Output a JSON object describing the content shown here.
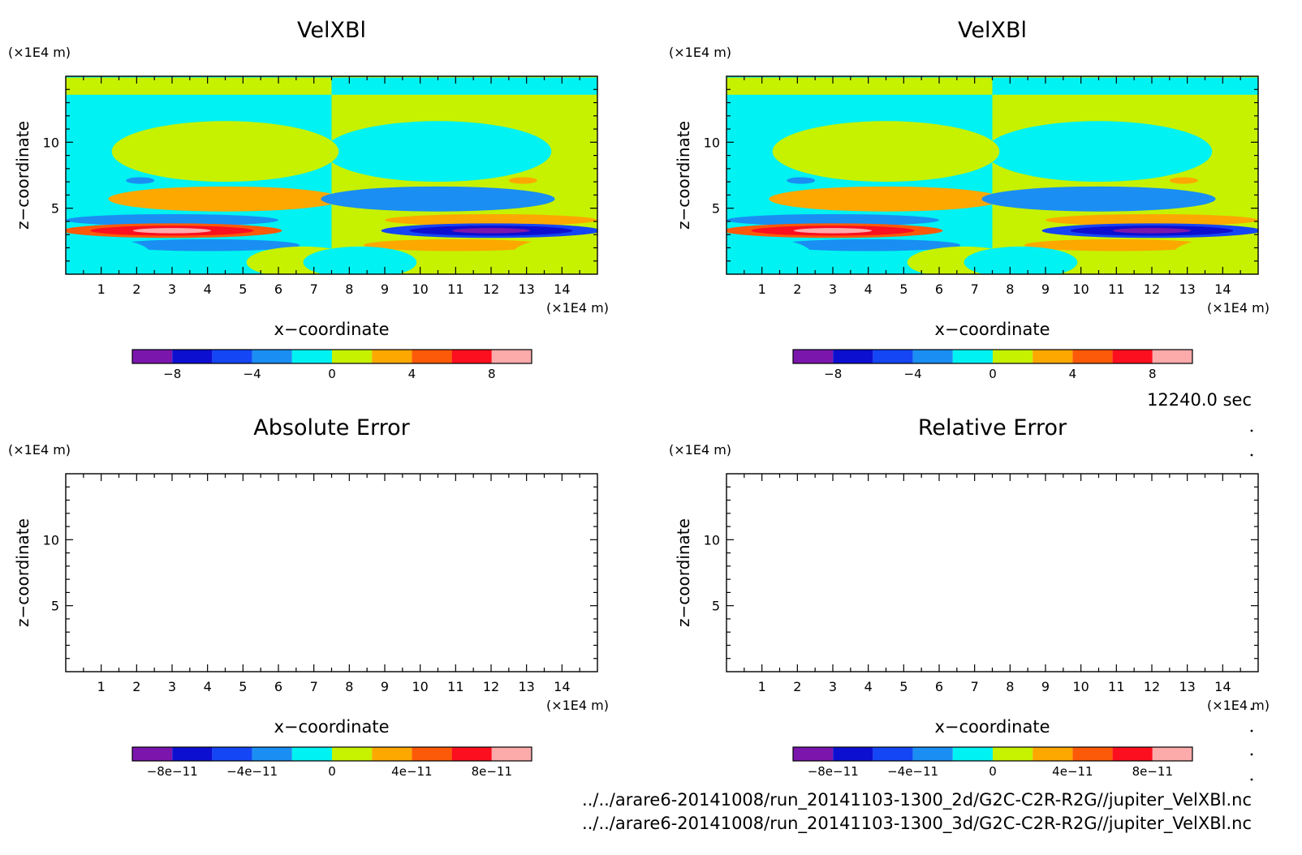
{
  "time_label": "12240.0 sec",
  "files": [
    "../../arare6-20141008/run_20141103-1300_2d/G2C-C2R-R2G//jupiter_VelXBl.nc",
    "../../arare6-20141008/run_20141103-1300_3d/G2C-C2R-R2G//jupiter_VelXBl.nc"
  ],
  "colors": [
    "#7b16ad",
    "#0d0fd0",
    "#1446f5",
    "#1a8ef2",
    "#00f2f2",
    "#c6f200",
    "#fca800",
    "#fc5a08",
    "#fc0f1e",
    "#fcaaaa"
  ],
  "chart_data": [
    {
      "type": "heatmap",
      "title": "VelXBl",
      "xlabel": "x−coordinate",
      "ylabel": "z−coordinate",
      "x_unit": "(×1E4 m)",
      "y_unit": "(×1E4 m)",
      "x_ticks": [
        "1",
        "2",
        "3",
        "4",
        "5",
        "6",
        "7",
        "8",
        "9",
        "10",
        "11",
        "12",
        "13",
        "14"
      ],
      "y_ticks": [
        "5",
        "10"
      ],
      "xlim": [
        0,
        15
      ],
      "ylim": [
        0,
        15
      ],
      "colorbar_ticks": [
        "−8",
        "−4",
        "0",
        "4",
        "8"
      ],
      "colorbar_values": [
        -8,
        -4,
        0,
        4,
        8
      ],
      "colorbar_range": [
        -10,
        10
      ],
      "filled": true
    },
    {
      "type": "heatmap",
      "title": "VelXBl",
      "xlabel": "x−coordinate",
      "ylabel": "z−coordinate",
      "x_unit": "(×1E4 m)",
      "y_unit": "(×1E4 m)",
      "x_ticks": [
        "1",
        "2",
        "3",
        "4",
        "5",
        "6",
        "7",
        "8",
        "9",
        "10",
        "11",
        "12",
        "13",
        "14"
      ],
      "y_ticks": [
        "5",
        "10"
      ],
      "xlim": [
        0,
        15
      ],
      "ylim": [
        0,
        15
      ],
      "colorbar_ticks": [
        "−8",
        "−4",
        "0",
        "4",
        "8"
      ],
      "colorbar_values": [
        -8,
        -4,
        0,
        4,
        8
      ],
      "colorbar_range": [
        -10,
        10
      ],
      "filled": true
    },
    {
      "type": "heatmap",
      "title": "Absolute Error",
      "xlabel": "x−coordinate",
      "ylabel": "z−coordinate",
      "x_unit": "(×1E4 m)",
      "y_unit": "(×1E4 m)",
      "x_ticks": [
        "1",
        "2",
        "3",
        "4",
        "5",
        "6",
        "7",
        "8",
        "9",
        "10",
        "11",
        "12",
        "13",
        "14"
      ],
      "y_ticks": [
        "5",
        "10"
      ],
      "xlim": [
        0,
        15
      ],
      "ylim": [
        0,
        15
      ],
      "colorbar_ticks": [
        "−8e−11",
        "−4e−11",
        "0",
        "4e−11",
        "8e−11"
      ],
      "colorbar_values": [
        -8e-11,
        -4e-11,
        0,
        4e-11,
        8e-11
      ],
      "colorbar_range": [
        -1e-10,
        1e-10
      ],
      "filled": false
    },
    {
      "type": "heatmap",
      "title": "Relative Error",
      "xlabel": "x−coordinate",
      "ylabel": "z−coordinate",
      "x_unit": "(×1E4 m)",
      "y_unit": "(×1E4 m)",
      "x_ticks": [
        "1",
        "2",
        "3",
        "4",
        "5",
        "6",
        "7",
        "8",
        "9",
        "10",
        "11",
        "12",
        "13",
        "14"
      ],
      "y_ticks": [
        "5",
        "10"
      ],
      "xlim": [
        0,
        15
      ],
      "ylim": [
        0,
        15
      ],
      "colorbar_ticks": [
        "−8e−11",
        "−4e−11",
        "0",
        "4e−11",
        "8e−11"
      ],
      "colorbar_values": [
        -8e-11,
        -4e-11,
        0,
        4e-11,
        8e-11
      ],
      "colorbar_range": [
        -1e-10,
        1e-10
      ],
      "filled": false
    }
  ]
}
